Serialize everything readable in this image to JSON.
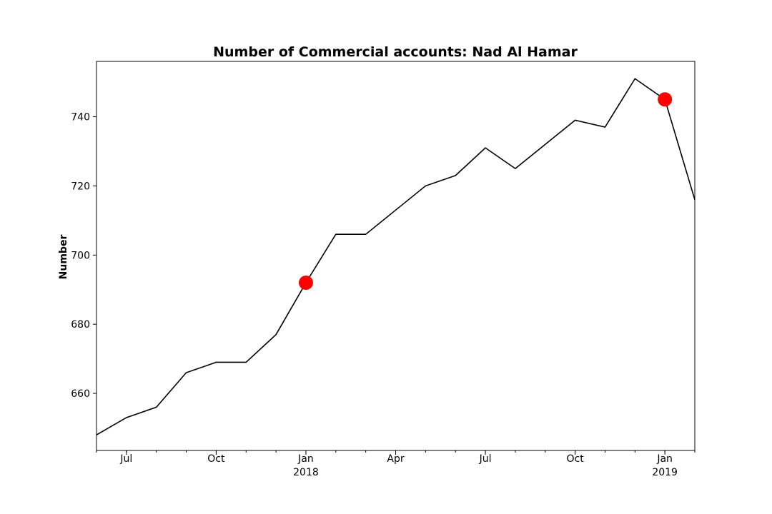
{
  "chart_data": {
    "type": "line",
    "title": "Number of Commercial accounts: Nad Al Hamar",
    "xlabel": "",
    "ylabel": "Number",
    "x": [
      "2017-06",
      "2017-07",
      "2017-08",
      "2017-09",
      "2017-10",
      "2017-11",
      "2017-12",
      "2018-01",
      "2018-02",
      "2018-03",
      "2018-04",
      "2018-05",
      "2018-06",
      "2018-07",
      "2018-08",
      "2018-09",
      "2018-10",
      "2018-11",
      "2018-12",
      "2019-01",
      "2019-02"
    ],
    "series": [
      {
        "values": [
          648,
          653,
          656,
          666,
          669,
          669,
          677,
          692,
          706,
          706,
          713,
          720,
          723,
          731,
          725,
          732,
          739,
          737,
          751,
          745,
          716
        ],
        "color": "#000000"
      }
    ],
    "highlighted_points": [
      {
        "x": "2018-01",
        "y": 692
      },
      {
        "x": "2019-01",
        "y": 745
      }
    ],
    "marker_color": "#ff0000",
    "xlim": [
      "2017-06",
      "2019-02"
    ],
    "ylim": [
      643.5,
      756
    ],
    "y_ticks": [
      660,
      680,
      700,
      720,
      740
    ],
    "x_major_ticks": [
      {
        "x": "2017-07",
        "label": "Jul"
      },
      {
        "x": "2017-10",
        "label": "Oct"
      },
      {
        "x": "2018-01",
        "label": "Jan",
        "sublabel": "2018"
      },
      {
        "x": "2018-04",
        "label": "Apr"
      },
      {
        "x": "2018-07",
        "label": "Jul"
      },
      {
        "x": "2018-10",
        "label": "Oct"
      },
      {
        "x": "2019-01",
        "label": "Jan",
        "sublabel": "2019"
      }
    ],
    "grid": false,
    "legend": "none"
  }
}
